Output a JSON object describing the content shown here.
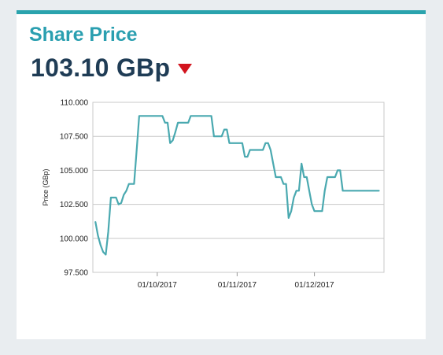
{
  "colors": {
    "accent": "#2aa3ad",
    "title": "#2a9fb0",
    "price": "#1f3c55",
    "down": "#d2141e",
    "line": "#4aa9b0",
    "grid": "#c8c8c8"
  },
  "header": {
    "title": "Share Price",
    "price": "103.10 GBp",
    "direction_icon": "down-triangle-icon"
  },
  "chart_data": {
    "type": "line",
    "title": "",
    "xlabel": "",
    "ylabel": "Price (GBp)",
    "ylim": [
      97.5,
      110.0
    ],
    "xlim": [
      "2017-09-06",
      "2017-12-28"
    ],
    "yticks": [
      "97.500",
      "100.000",
      "102.500",
      "105.000",
      "107.500",
      "110.000"
    ],
    "yvals": [
      97.5,
      100.0,
      102.5,
      105.0,
      107.5,
      110.0
    ],
    "xticks": [
      {
        "label": "01/10/2017",
        "date": "2017-10-01"
      },
      {
        "label": "01/11/2017",
        "date": "2017-11-01"
      },
      {
        "label": "01/12/2017",
        "date": "2017-12-01"
      }
    ],
    "grid": true,
    "series": [
      {
        "name": "",
        "points": [
          [
            "2017-09-07",
            101.2
          ],
          [
            "2017-09-08",
            100.2
          ],
          [
            "2017-09-09",
            99.5
          ],
          [
            "2017-09-10",
            99.0
          ],
          [
            "2017-09-11",
            98.8
          ],
          [
            "2017-09-12",
            100.5
          ],
          [
            "2017-09-13",
            103.0
          ],
          [
            "2017-09-14",
            103.0
          ],
          [
            "2017-09-15",
            103.0
          ],
          [
            "2017-09-16",
            102.5
          ],
          [
            "2017-09-17",
            102.6
          ],
          [
            "2017-09-18",
            103.2
          ],
          [
            "2017-09-19",
            103.5
          ],
          [
            "2017-09-20",
            104.0
          ],
          [
            "2017-09-21",
            104.0
          ],
          [
            "2017-09-22",
            104.0
          ],
          [
            "2017-09-23",
            106.5
          ],
          [
            "2017-09-24",
            109.0
          ],
          [
            "2017-09-27",
            109.0
          ],
          [
            "2017-09-30",
            109.0
          ],
          [
            "2017-10-03",
            109.0
          ],
          [
            "2017-10-04",
            108.5
          ],
          [
            "2017-10-05",
            108.5
          ],
          [
            "2017-10-06",
            107.0
          ],
          [
            "2017-10-07",
            107.2
          ],
          [
            "2017-10-08",
            107.8
          ],
          [
            "2017-10-09",
            108.5
          ],
          [
            "2017-10-12",
            108.5
          ],
          [
            "2017-10-13",
            108.5
          ],
          [
            "2017-10-14",
            109.0
          ],
          [
            "2017-10-18",
            109.0
          ],
          [
            "2017-10-21",
            109.0
          ],
          [
            "2017-10-22",
            109.0
          ],
          [
            "2017-10-23",
            107.5
          ],
          [
            "2017-10-25",
            107.5
          ],
          [
            "2017-10-26",
            107.5
          ],
          [
            "2017-10-27",
            108.0
          ],
          [
            "2017-10-28",
            108.0
          ],
          [
            "2017-10-29",
            107.0
          ],
          [
            "2017-11-01",
            107.0
          ],
          [
            "2017-11-03",
            107.0
          ],
          [
            "2017-11-04",
            106.0
          ],
          [
            "2017-11-05",
            106.0
          ],
          [
            "2017-11-06",
            106.5
          ],
          [
            "2017-11-08",
            106.5
          ],
          [
            "2017-11-10",
            106.5
          ],
          [
            "2017-11-11",
            106.5
          ],
          [
            "2017-11-12",
            107.0
          ],
          [
            "2017-11-13",
            107.0
          ],
          [
            "2017-11-14",
            106.5
          ],
          [
            "2017-11-15",
            105.5
          ],
          [
            "2017-11-16",
            104.5
          ],
          [
            "2017-11-17",
            104.5
          ],
          [
            "2017-11-18",
            104.5
          ],
          [
            "2017-11-19",
            104.0
          ],
          [
            "2017-11-20",
            104.0
          ],
          [
            "2017-11-21",
            101.5
          ],
          [
            "2017-11-22",
            102.0
          ],
          [
            "2017-11-23",
            103.0
          ],
          [
            "2017-11-24",
            103.5
          ],
          [
            "2017-11-25",
            103.5
          ],
          [
            "2017-11-26",
            105.5
          ],
          [
            "2017-11-27",
            104.5
          ],
          [
            "2017-11-28",
            104.5
          ],
          [
            "2017-11-29",
            103.5
          ],
          [
            "2017-11-30",
            102.5
          ],
          [
            "2017-12-01",
            102.0
          ],
          [
            "2017-12-03",
            102.0
          ],
          [
            "2017-12-04",
            102.0
          ],
          [
            "2017-12-05",
            103.5
          ],
          [
            "2017-12-06",
            104.5
          ],
          [
            "2017-12-08",
            104.5
          ],
          [
            "2017-12-09",
            104.5
          ],
          [
            "2017-12-10",
            105.0
          ],
          [
            "2017-12-11",
            105.0
          ],
          [
            "2017-12-12",
            103.5
          ],
          [
            "2017-12-15",
            103.5
          ],
          [
            "2017-12-18",
            103.5
          ],
          [
            "2017-12-21",
            103.5
          ],
          [
            "2017-12-24",
            103.5
          ],
          [
            "2017-12-26",
            103.5
          ]
        ]
      }
    ]
  }
}
